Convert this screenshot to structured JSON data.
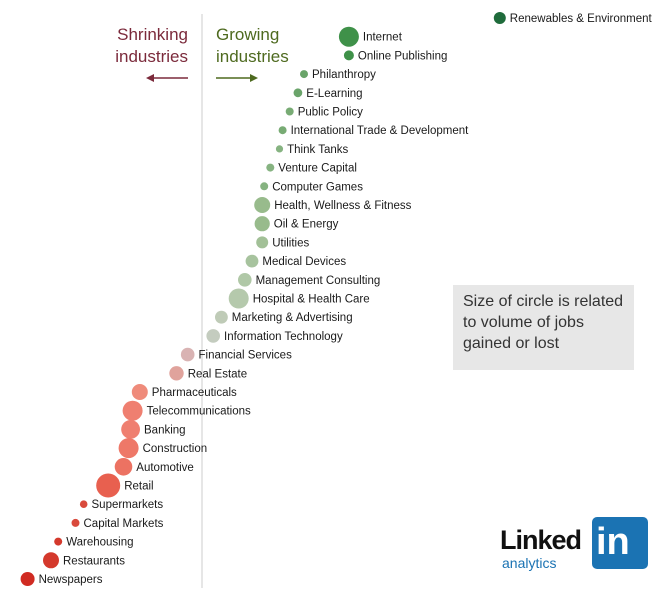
{
  "chart_data": {
    "type": "scatter",
    "headers": {
      "shrinking": [
        "Shrinking",
        "industries"
      ],
      "growing": [
        "Growing",
        "industries"
      ]
    },
    "series": [
      {
        "name": "Renewables & Environment",
        "value": 2.92,
        "size": 2,
        "color": "#1f6b3b"
      },
      {
        "name": "Internet",
        "value": 1.44,
        "size": 4,
        "color": "#3f9149"
      },
      {
        "name": "Online Publishing",
        "value": 1.44,
        "size": 1.5,
        "color": "#3f9149"
      },
      {
        "name": "Philanthropy",
        "value": 1.0,
        "size": 1,
        "color": "#6aa46a"
      },
      {
        "name": "E-Learning",
        "value": 0.94,
        "size": 1.2,
        "color": "#6aa46a"
      },
      {
        "name": "Public Policy",
        "value": 0.86,
        "size": 1,
        "color": "#78ab74"
      },
      {
        "name": "International Trade & Development",
        "value": 0.79,
        "size": 1,
        "color": "#78ab74"
      },
      {
        "name": "Think Tanks",
        "value": 0.76,
        "size": 0.8,
        "color": "#86b381"
      },
      {
        "name": "Venture Capital",
        "value": 0.67,
        "size": 1,
        "color": "#86b381"
      },
      {
        "name": "Computer Games",
        "value": 0.61,
        "size": 1,
        "color": "#86b381"
      },
      {
        "name": "Health, Wellness & Fitness",
        "value": 0.59,
        "size": 3,
        "color": "#98bb8c"
      },
      {
        "name": "Oil & Energy",
        "value": 0.59,
        "size": 2.8,
        "color": "#98bb8c"
      },
      {
        "name": "Utilities",
        "value": 0.59,
        "size": 2,
        "color": "#a2c097"
      },
      {
        "name": "Medical Devices",
        "value": 0.49,
        "size": 2.2,
        "color": "#a7c39e"
      },
      {
        "name": "Management Consulting",
        "value": 0.42,
        "size": 2.4,
        "color": "#b0c8a7"
      },
      {
        "name": "Hospital & Health Care",
        "value": 0.36,
        "size": 4,
        "color": "#b5c9ac"
      },
      {
        "name": "Marketing & Advertising",
        "value": 0.19,
        "size": 2.2,
        "color": "#bfcbb7"
      },
      {
        "name": "Information Technology",
        "value": 0.11,
        "size": 2.4,
        "color": "#c4ccbf"
      },
      {
        "name": "Financial Services",
        "value": -0.14,
        "size": 2.4,
        "color": "#d9b3b3"
      },
      {
        "name": "Real Estate",
        "value": -0.25,
        "size": 2.6,
        "color": "#e0a39c"
      },
      {
        "name": "Pharmaceuticals",
        "value": -0.61,
        "size": 3,
        "color": "#ef8b7b"
      },
      {
        "name": "Telecommunications",
        "value": -0.68,
        "size": 4,
        "color": "#ef7f70"
      },
      {
        "name": "Banking",
        "value": -0.7,
        "size": 3.7,
        "color": "#ef7f70"
      },
      {
        "name": "Construction",
        "value": -0.72,
        "size": 4,
        "color": "#ee7868"
      },
      {
        "name": "Automotive",
        "value": -0.77,
        "size": 3.4,
        "color": "#ec7262"
      },
      {
        "name": "Retail",
        "value": -0.92,
        "size": 5,
        "color": "#e8604f"
      },
      {
        "name": "Supermarkets",
        "value": -1.16,
        "size": 0.9,
        "color": "#d94a3c"
      },
      {
        "name": "Capital Markets",
        "value": -1.24,
        "size": 1,
        "color": "#d94a3c"
      },
      {
        "name": "Warehousing",
        "value": -1.41,
        "size": 1,
        "color": "#d4392c"
      },
      {
        "name": "Restaurants",
        "value": -1.48,
        "size": 3,
        "color": "#d4392c"
      },
      {
        "name": "Newspapers",
        "value": -1.71,
        "size": 2.5,
        "color": "#d02b22"
      }
    ]
  },
  "note": "Size of circle is related to volume of jobs gained or lost",
  "logo": {
    "word": "Linked",
    "box": "in",
    "sub": "analytics"
  },
  "colors": {
    "shrink": "#7b2a3b",
    "grow": "#4e6a1f",
    "axis": "#cccccc",
    "logo": "#1b73b3"
  }
}
